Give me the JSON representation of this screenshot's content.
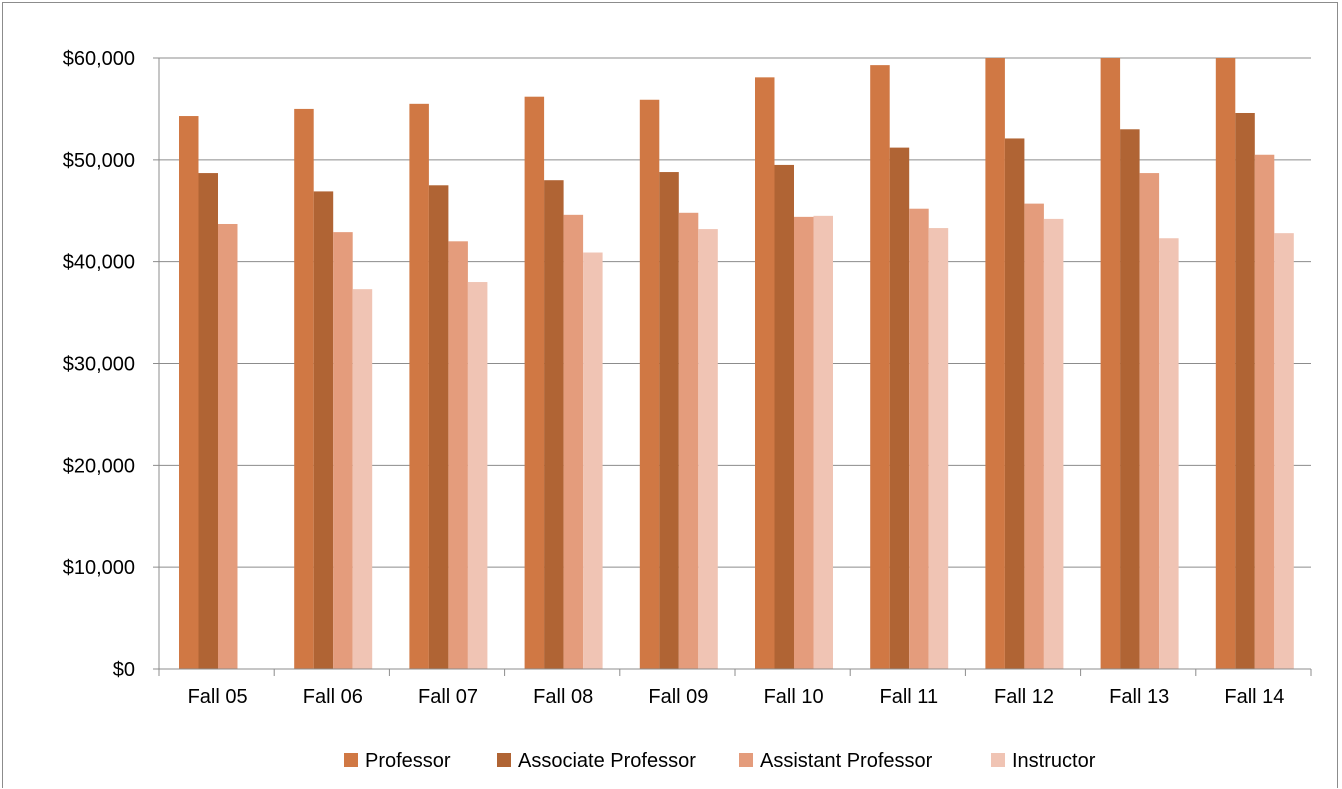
{
  "chart_data": {
    "type": "bar",
    "title": "",
    "xlabel": "",
    "ylabel": "",
    "ylim": [
      0,
      60000
    ],
    "ytick_step": 10000,
    "ytick_labels": [
      "$0",
      "$10,000",
      "$20,000",
      "$30,000",
      "$40,000",
      "$50,000",
      "$60,000"
    ],
    "grid": true,
    "legend_position": "bottom",
    "categories": [
      "Fall 05",
      "Fall 06",
      "Fall 07",
      "Fall 08",
      "Fall 09",
      "Fall 10",
      "Fall 11",
      "Fall 12",
      "Fall 13",
      "Fall 14"
    ],
    "series": [
      {
        "name": "Professor",
        "color": "#d07844",
        "values": [
          54300,
          55000,
          55500,
          56200,
          55900,
          58100,
          59300,
          60000,
          60000,
          60000
        ]
      },
      {
        "name": "Associate Professor",
        "color": "#b06434",
        "values": [
          48700,
          46900,
          47500,
          48000,
          48800,
          49500,
          51200,
          52100,
          53000,
          54600
        ]
      },
      {
        "name": "Assistant Professor",
        "color": "#e49c7c",
        "values": [
          43700,
          42900,
          42000,
          44600,
          44800,
          44400,
          45200,
          45700,
          48700,
          50500
        ]
      },
      {
        "name": "Instructor",
        "color": "#f0c4b4",
        "values": [
          null,
          37300,
          38000,
          40900,
          43200,
          44500,
          43300,
          44200,
          42300,
          42800
        ]
      }
    ]
  }
}
